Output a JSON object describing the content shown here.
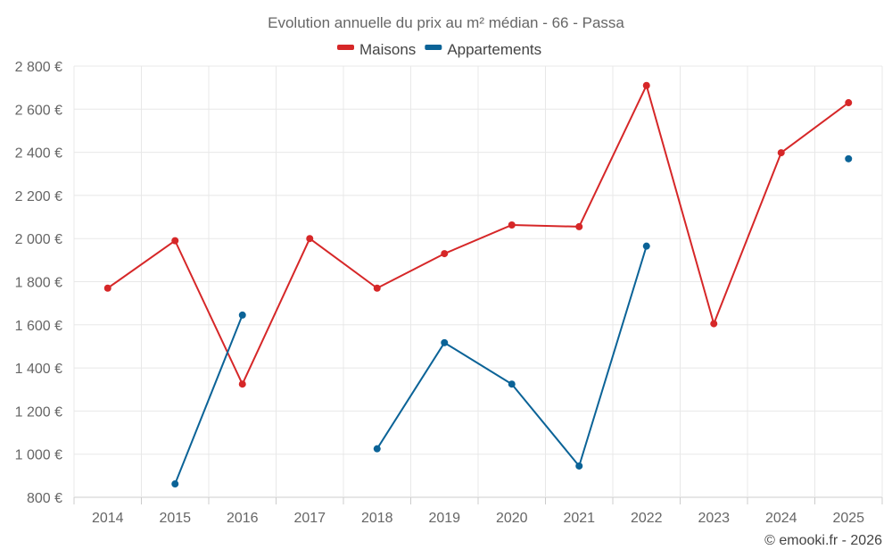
{
  "chart_data": {
    "type": "line",
    "title": "Evolution annuelle du prix au m² médian - 66 - Passa",
    "categories": [
      "2014",
      "2015",
      "2016",
      "2017",
      "2018",
      "2019",
      "2020",
      "2021",
      "2022",
      "2023",
      "2024",
      "2025"
    ],
    "series": [
      {
        "name": "Maisons",
        "color": "#d62728",
        "values": [
          1770,
          1990,
          1325,
          2000,
          1770,
          1930,
          2063,
          2055,
          2710,
          1605,
          2398,
          2630
        ]
      },
      {
        "name": "Appartements",
        "color": "#0b6397",
        "values": [
          null,
          862,
          1645,
          null,
          1025,
          1517,
          1325,
          945,
          1965,
          null,
          null,
          2370
        ]
      }
    ],
    "ylim": [
      800,
      2800
    ],
    "yticks": [
      800,
      1000,
      1200,
      1400,
      1600,
      1800,
      2000,
      2200,
      2400,
      2600,
      2800
    ],
    "ytick_labels": [
      "800 €",
      "1 000 €",
      "1 200 €",
      "1 400 €",
      "1 600 €",
      "1 800 €",
      "2 000 €",
      "2 200 €",
      "2 400 €",
      "2 600 €",
      "2 800 €"
    ],
    "xlabel": "",
    "ylabel": "",
    "grid": true,
    "legend_position": "top-center"
  },
  "credit": "© emooki.fr - 2026"
}
